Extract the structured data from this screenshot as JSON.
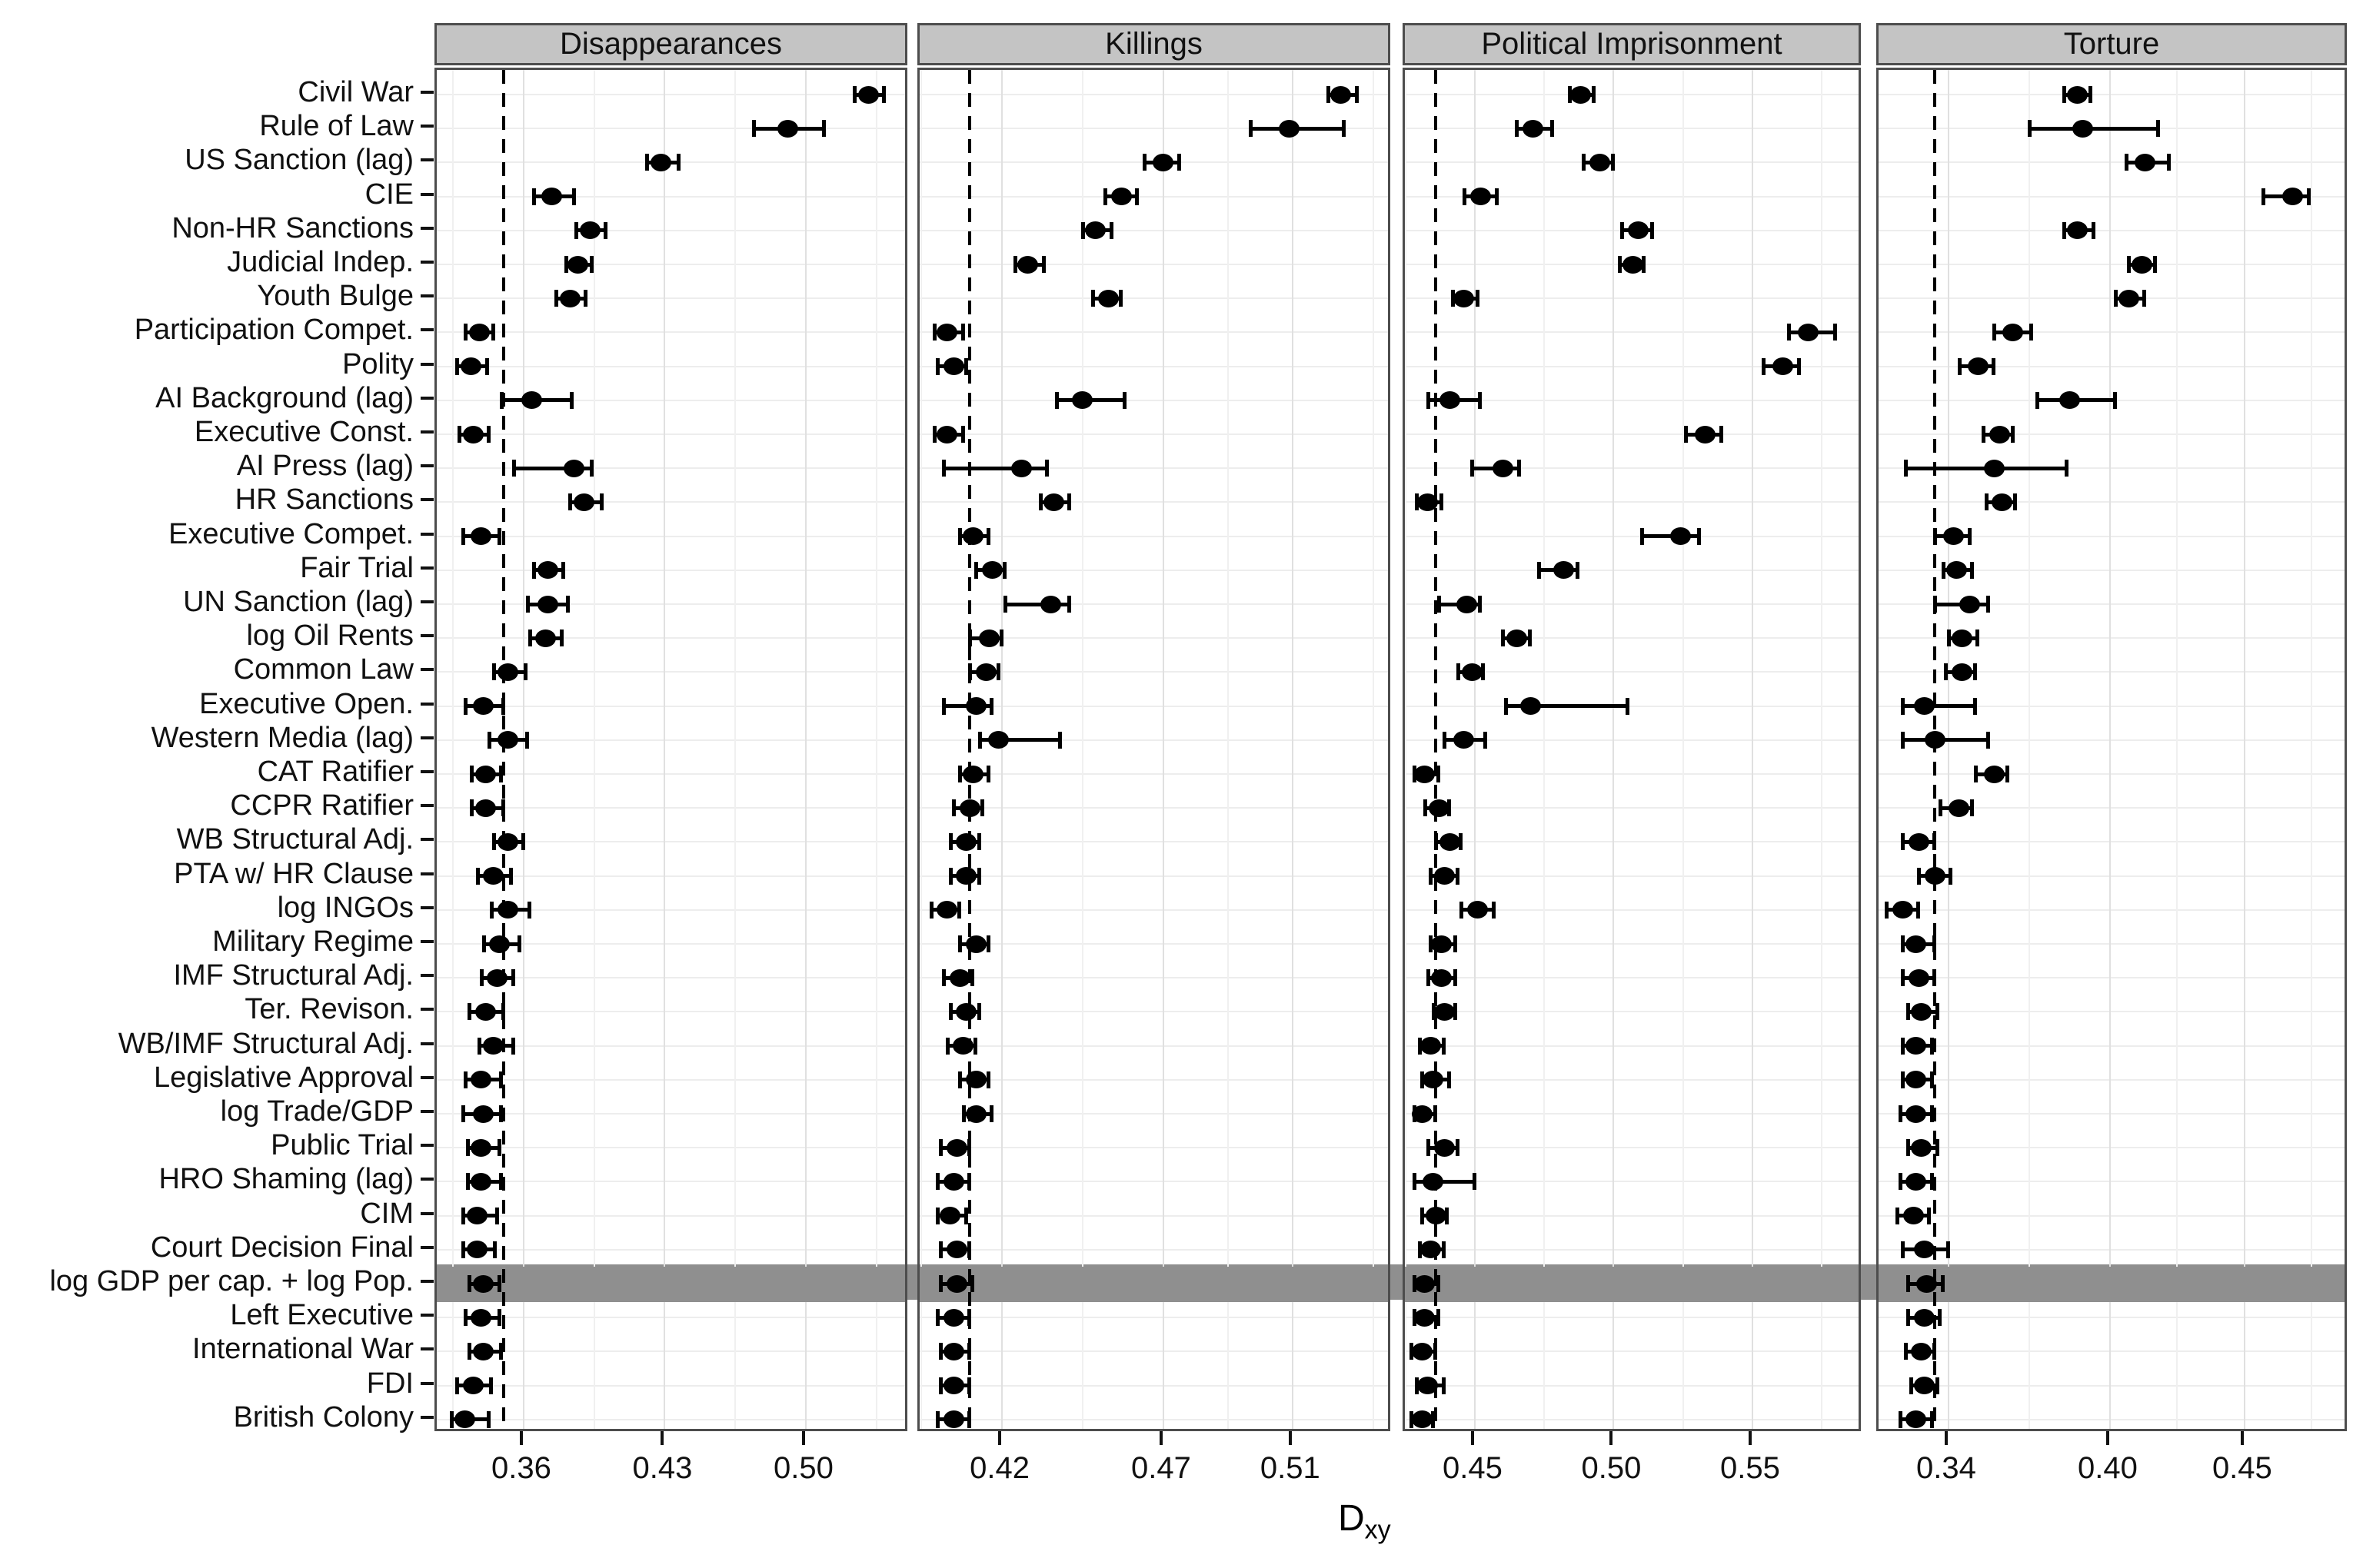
{
  "figure": {
    "xlabel_main": "D",
    "xlabel_sub": "xy"
  },
  "categories": [
    "Civil War",
    "Rule of Law",
    "US Sanction (lag)",
    "CIE",
    "Non-HR Sanctions",
    "Judicial Indep.",
    "Youth Bulge",
    "Participation Compet.",
    "Polity",
    "AI Background (lag)",
    "Executive Const.",
    "AI Press (lag)",
    "HR Sanctions",
    "Executive Compet.",
    "Fair Trial",
    "UN Sanction (lag)",
    "log Oil Rents",
    "Common Law",
    "Executive Open.",
    "Western Media (lag)",
    "CAT Ratifier",
    "CCPR Ratifier",
    "WB Structural Adj.",
    "PTA w/ HR Clause",
    "log INGOs",
    "Military Regime",
    "IMF Structural Adj.",
    "Ter. Revison.",
    "WB/IMF Structural Adj.",
    "Legislative Approval",
    "log Trade/GDP",
    "Public Trial",
    "HRO Shaming (lag)",
    "CIM",
    "Court Decision Final",
    "log GDP per cap. + log Pop.",
    "Left Executive",
    "International War",
    "FDI",
    "British Colony"
  ],
  "highlight_category": "log GDP per cap. + log Pop.",
  "highlight_index": 35,
  "colors": {
    "band": "#8f8f8f",
    "strip_bg": "#c4c4c4",
    "point": "#000000",
    "grid_major": "#e0e0e0",
    "grid_minor": "#f0f0f0"
  },
  "chart_data": {
    "type": "scatter",
    "subtype": "dot-whisker, 4 facets, shared categorical y-axis (40 predictors), horizontal error bars, dashed vertical baseline per facet, gray highlight band on log GDP per cap. + log Pop. row",
    "xlabel": "Dxy",
    "grid": true,
    "facets": [
      {
        "title": "Disappearances",
        "baseline": 0.35,
        "x_range": [
          0.3169,
          0.5515
        ],
        "x_ticks": [
          0.36,
          0.43,
          0.5
        ],
        "tick_labels": [
          "0.36",
          "0.43",
          "0.50"
        ],
        "x_minor": [
          0.325,
          0.395,
          0.465,
          0.535
        ],
        "values": [
          0.531,
          0.491,
          0.428,
          0.374,
          0.393,
          0.387,
          0.383,
          0.338,
          0.334,
          0.364,
          0.335,
          0.385,
          0.39,
          0.339,
          0.372,
          0.372,
          0.371,
          0.352,
          0.34,
          0.352,
          0.341,
          0.341,
          0.352,
          0.345,
          0.352,
          0.348,
          0.347,
          0.341,
          0.345,
          0.339,
          0.34,
          0.339,
          0.339,
          0.337,
          0.337,
          0.34,
          0.339,
          0.34,
          0.335,
          0.331
        ],
        "lo": [
          0.524,
          0.474,
          0.421,
          0.365,
          0.386,
          0.381,
          0.376,
          0.331,
          0.327,
          0.349,
          0.328,
          0.355,
          0.383,
          0.33,
          0.365,
          0.362,
          0.363,
          0.345,
          0.331,
          0.343,
          0.334,
          0.334,
          0.345,
          0.337,
          0.344,
          0.34,
          0.339,
          0.333,
          0.338,
          0.331,
          0.33,
          0.332,
          0.332,
          0.33,
          0.33,
          0.333,
          0.331,
          0.333,
          0.327,
          0.324
        ],
        "hi": [
          0.539,
          0.509,
          0.437,
          0.385,
          0.401,
          0.394,
          0.391,
          0.345,
          0.342,
          0.384,
          0.343,
          0.394,
          0.399,
          0.348,
          0.38,
          0.382,
          0.379,
          0.361,
          0.35,
          0.362,
          0.349,
          0.35,
          0.36,
          0.354,
          0.363,
          0.358,
          0.355,
          0.35,
          0.355,
          0.349,
          0.349,
          0.348,
          0.349,
          0.347,
          0.346,
          0.348,
          0.348,
          0.349,
          0.344,
          0.343
        ]
      },
      {
        "title": "Killings",
        "baseline": 0.41,
        "x_range": [
          0.3945,
          0.541
        ],
        "x_ticks": [
          0.42,
          0.47,
          0.51
        ],
        "tick_labels": [
          "0.42",
          "0.47",
          "0.51"
        ],
        "x_minor": [
          0.395,
          0.445,
          0.49,
          0.535
        ],
        "values": [
          0.525,
          0.509,
          0.47,
          0.457,
          0.449,
          0.428,
          0.453,
          0.403,
          0.405,
          0.445,
          0.403,
          0.426,
          0.436,
          0.411,
          0.417,
          0.435,
          0.416,
          0.415,
          0.412,
          0.419,
          0.411,
          0.41,
          0.409,
          0.409,
          0.403,
          0.412,
          0.407,
          0.409,
          0.408,
          0.412,
          0.412,
          0.406,
          0.405,
          0.404,
          0.406,
          0.406,
          0.405,
          0.405,
          0.405,
          0.405
        ],
        "lo": [
          0.521,
          0.497,
          0.464,
          0.452,
          0.445,
          0.424,
          0.448,
          0.399,
          0.4,
          0.437,
          0.399,
          0.402,
          0.432,
          0.407,
          0.412,
          0.421,
          0.41,
          0.41,
          0.402,
          0.413,
          0.407,
          0.405,
          0.404,
          0.404,
          0.398,
          0.407,
          0.402,
          0.404,
          0.403,
          0.407,
          0.408,
          0.401,
          0.4,
          0.4,
          0.401,
          0.401,
          0.4,
          0.401,
          0.401,
          0.4
        ],
        "hi": [
          0.53,
          0.526,
          0.475,
          0.462,
          0.454,
          0.433,
          0.457,
          0.408,
          0.409,
          0.458,
          0.408,
          0.434,
          0.441,
          0.416,
          0.421,
          0.441,
          0.42,
          0.419,
          0.417,
          0.438,
          0.416,
          0.414,
          0.413,
          0.413,
          0.407,
          0.416,
          0.411,
          0.413,
          0.412,
          0.416,
          0.417,
          0.41,
          0.41,
          0.409,
          0.41,
          0.411,
          0.41,
          0.41,
          0.41,
          0.41
        ]
      },
      {
        "title": "Political Imprisonment",
        "baseline": 0.436,
        "x_range": [
          0.4248,
          0.5899
        ],
        "x_ticks": [
          0.45,
          0.5,
          0.55
        ],
        "tick_labels": [
          "0.45",
          "0.50",
          "0.55"
        ],
        "x_minor": [
          0.425,
          0.475,
          0.525,
          0.575
        ],
        "values": [
          0.488,
          0.471,
          0.495,
          0.452,
          0.509,
          0.507,
          0.446,
          0.57,
          0.561,
          0.441,
          0.533,
          0.46,
          0.433,
          0.524,
          0.482,
          0.447,
          0.465,
          0.449,
          0.47,
          0.446,
          0.432,
          0.437,
          0.441,
          0.439,
          0.451,
          0.438,
          0.438,
          0.439,
          0.434,
          0.435,
          0.431,
          0.439,
          0.435,
          0.436,
          0.434,
          0.432,
          0.432,
          0.431,
          0.433,
          0.431
        ],
        "lo": [
          0.484,
          0.465,
          0.489,
          0.446,
          0.503,
          0.502,
          0.442,
          0.563,
          0.554,
          0.433,
          0.526,
          0.449,
          0.429,
          0.51,
          0.473,
          0.437,
          0.46,
          0.444,
          0.461,
          0.439,
          0.428,
          0.432,
          0.436,
          0.434,
          0.445,
          0.434,
          0.433,
          0.435,
          0.43,
          0.431,
          0.428,
          0.433,
          0.428,
          0.431,
          0.43,
          0.428,
          0.428,
          0.427,
          0.429,
          0.427
        ],
        "hi": [
          0.493,
          0.478,
          0.5,
          0.458,
          0.514,
          0.511,
          0.451,
          0.58,
          0.567,
          0.452,
          0.539,
          0.466,
          0.438,
          0.531,
          0.487,
          0.452,
          0.47,
          0.453,
          0.505,
          0.454,
          0.437,
          0.441,
          0.445,
          0.444,
          0.457,
          0.443,
          0.443,
          0.443,
          0.439,
          0.441,
          0.436,
          0.444,
          0.45,
          0.44,
          0.439,
          0.437,
          0.437,
          0.436,
          0.439,
          0.435
        ]
      },
      {
        "title": "Torture",
        "baseline": 0.335,
        "x_range": [
          0.314,
          0.4889
        ],
        "x_ticks": [
          0.34,
          0.4,
          0.45
        ],
        "tick_labels": [
          "0.34",
          "0.40",
          "0.45"
        ],
        "x_minor": [
          0.37,
          0.425,
          0.475
        ],
        "values": [
          0.388,
          0.39,
          0.413,
          0.468,
          0.388,
          0.412,
          0.407,
          0.364,
          0.351,
          0.385,
          0.359,
          0.357,
          0.36,
          0.342,
          0.343,
          0.348,
          0.345,
          0.345,
          0.331,
          0.335,
          0.357,
          0.344,
          0.329,
          0.335,
          0.323,
          0.328,
          0.329,
          0.33,
          0.328,
          0.328,
          0.328,
          0.33,
          0.328,
          0.327,
          0.331,
          0.332,
          0.331,
          0.33,
          0.331,
          0.328
        ],
        "lo": [
          0.383,
          0.37,
          0.406,
          0.457,
          0.383,
          0.407,
          0.402,
          0.357,
          0.344,
          0.373,
          0.353,
          0.324,
          0.354,
          0.335,
          0.338,
          0.335,
          0.34,
          0.339,
          0.323,
          0.323,
          0.35,
          0.337,
          0.323,
          0.329,
          0.317,
          0.323,
          0.323,
          0.325,
          0.323,
          0.323,
          0.322,
          0.325,
          0.322,
          0.321,
          0.323,
          0.325,
          0.325,
          0.324,
          0.326,
          0.322
        ],
        "hi": [
          0.393,
          0.418,
          0.422,
          0.474,
          0.394,
          0.417,
          0.413,
          0.371,
          0.357,
          0.402,
          0.364,
          0.384,
          0.365,
          0.348,
          0.349,
          0.355,
          0.351,
          0.35,
          0.35,
          0.355,
          0.362,
          0.349,
          0.335,
          0.341,
          0.329,
          0.335,
          0.335,
          0.336,
          0.334,
          0.334,
          0.334,
          0.336,
          0.334,
          0.333,
          0.34,
          0.338,
          0.337,
          0.335,
          0.336,
          0.334
        ]
      }
    ]
  }
}
